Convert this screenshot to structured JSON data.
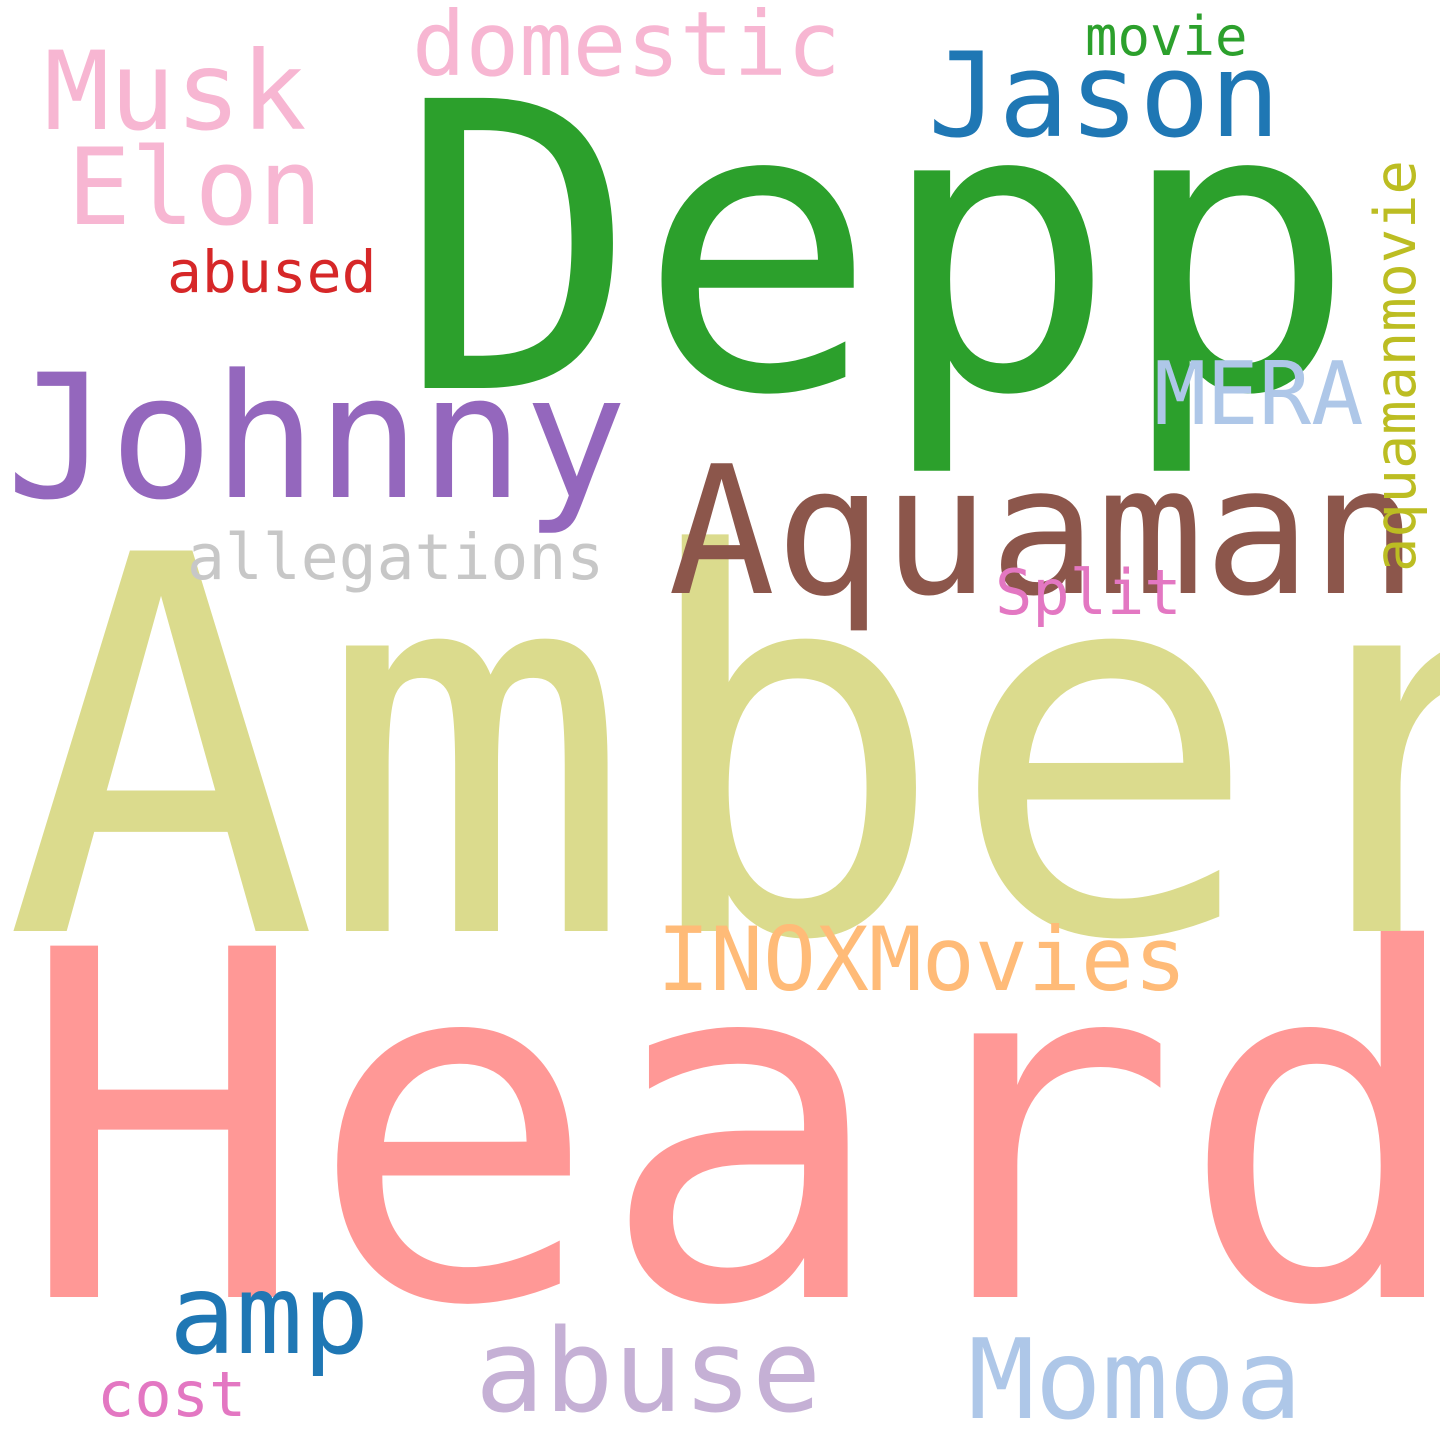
{
  "words": [
    {
      "text": "Heard",
      "color": "#ff9896"
    },
    {
      "text": "Amber",
      "color": "#dbdb8d"
    },
    {
      "text": "Depp",
      "color": "#2ca02c"
    },
    {
      "text": "Johnny",
      "color": "#9467bd"
    },
    {
      "text": "Aquaman",
      "color": "#8c564b"
    },
    {
      "text": "Jason",
      "color": "#1f77b4"
    },
    {
      "text": "Musk",
      "color": "#f7b6d2"
    },
    {
      "text": "Elon",
      "color": "#f7b6d2"
    },
    {
      "text": "domestic",
      "color": "#f7b6d2"
    },
    {
      "text": "movie",
      "color": "#2ca02c"
    },
    {
      "text": "aquamanmovie",
      "color": "#bcbd22"
    },
    {
      "text": "MERA",
      "color": "#aec7e8"
    },
    {
      "text": "abused",
      "color": "#d62728"
    },
    {
      "text": "allegations",
      "color": "#c7c7c7"
    },
    {
      "text": "Split",
      "color": "#e377c2"
    },
    {
      "text": "INOXMovies",
      "color": "#ffbb78"
    },
    {
      "text": "amp",
      "color": "#1f77b4"
    },
    {
      "text": "abuse",
      "color": "#c5b0d5"
    },
    {
      "text": "Momoa",
      "color": "#aec7e8"
    },
    {
      "text": "cost",
      "color": "#e377c2"
    }
  ]
}
